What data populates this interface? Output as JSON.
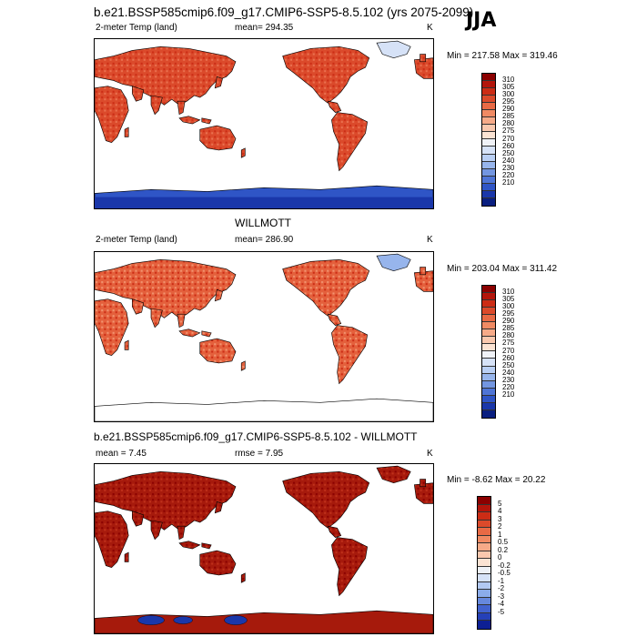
{
  "season": "JJA",
  "palettes": {
    "temp": [
      "#8b0000",
      "#b3150b",
      "#cc2c15",
      "#db4a2b",
      "#e86a45",
      "#f08a63",
      "#f6aa88",
      "#f9c8ae",
      "#fbe3d3",
      "#f0f2f7",
      "#d6e2f7",
      "#b9cff4",
      "#97b5ec",
      "#7396e1",
      "#4f75d6",
      "#2f55c6",
      "#1a37aa",
      "#0a1f80"
    ],
    "diff": [
      "#8b0000",
      "#b3150b",
      "#cc2c15",
      "#db4a2b",
      "#e86a45",
      "#f08a63",
      "#f6aa88",
      "#f9c8ae",
      "#fbe3d3",
      "#eef1f6",
      "#d6e2f7",
      "#b2c9f2",
      "#8bacea",
      "#6688dd",
      "#4262cf",
      "#2540b8",
      "#0d1f94"
    ]
  },
  "panels": [
    {
      "title": "b.e21.BSSP585cmip6.f09_g17.CMIP6-SSP5-8.5.102 (yrs 2075-2099)",
      "left_label": "2-meter Temp (land)",
      "center_label": "mean= 294.35",
      "right_label": "K",
      "minmax": "Min = 217.58 Max = 319.46",
      "palette": "temp",
      "levels": [
        "310",
        "305",
        "300",
        "295",
        "290",
        "285",
        "280",
        "275",
        "270",
        "260",
        "250",
        "240",
        "230",
        "220",
        "210"
      ],
      "style": "model"
    },
    {
      "title": "WILLMOTT",
      "left_label": "2-meter Temp (land)",
      "center_label": "mean= 286.90",
      "right_label": "K",
      "minmax": "Min = 203.04 Max = 311.42",
      "palette": "temp",
      "levels": [
        "310",
        "305",
        "300",
        "295",
        "290",
        "285",
        "280",
        "275",
        "270",
        "260",
        "250",
        "240",
        "230",
        "220",
        "210"
      ],
      "style": "obs"
    },
    {
      "title": "b.e21.BSSP585cmip6.f09_g17.CMIP6-SSP5-8.5.102 - WILLMOTT",
      "left_label": "mean =   7.45",
      "center_label": "rmse =   7.95",
      "right_label": "K",
      "minmax": "Min =  -8.62 Max =  20.22",
      "palette": "diff",
      "levels": [
        "5",
        "4",
        "3",
        "2",
        "1",
        "0.5",
        "0.2",
        "0",
        "-0.2",
        "-0.5",
        "-1",
        "-2",
        "-3",
        "-4",
        "-5"
      ],
      "style": "diff"
    }
  ]
}
